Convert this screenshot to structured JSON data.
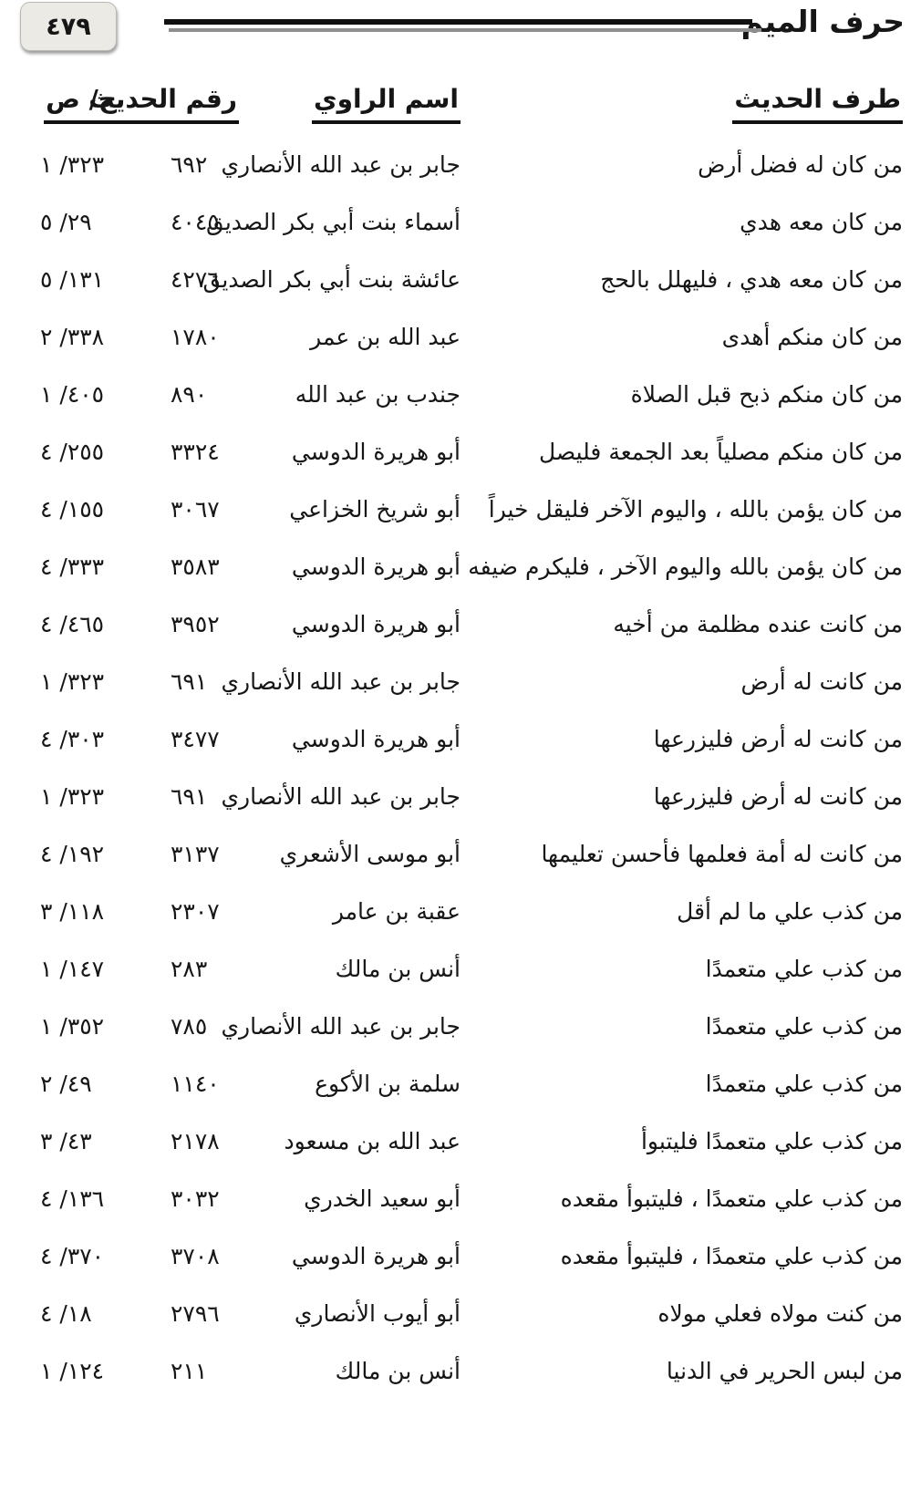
{
  "page": {
    "number": "٤٧٩",
    "section_title": "حرف الميم"
  },
  "table": {
    "headers": {
      "hadith": "طرف الحديث",
      "narrator": "اسم الراوي",
      "number": "رقم الحديث",
      "vol_page": "ج/ ص"
    },
    "ref_separator": "/ ",
    "rows": [
      {
        "hadith": "من كان له فضل أرض",
        "narrator": "جابر بن عبد الله الأنصاري",
        "number": "٦٩٢",
        "volume": "١",
        "page": "٣٢٣"
      },
      {
        "hadith": "من كان معه هدي",
        "narrator": "أسماء بنت أبي بكر الصديق",
        "number": "٤٠٤٥",
        "volume": "٥",
        "page": "٢٩"
      },
      {
        "hadith": "من كان معه هدي ، فليهلل بالحج",
        "narrator": "عائشة بنت أبي بكر الصديق",
        "number": "٤٢٧٦",
        "volume": "٥",
        "page": "١٣١"
      },
      {
        "hadith": "من كان منكم أهدى",
        "narrator": "عبد الله بن عمر",
        "number": "١٧٨٠",
        "volume": "٢",
        "page": "٣٣٨"
      },
      {
        "hadith": "من كان منكم ذبح قبل الصلاة",
        "narrator": "جندب بن عبد الله",
        "number": "٨٩٠",
        "volume": "١",
        "page": "٤٠٥"
      },
      {
        "hadith": "من كان منكم مصلياً بعد الجمعة فليصل",
        "narrator": "أبو هريرة الدوسي",
        "number": "٣٣٢٤",
        "volume": "٤",
        "page": "٢٥٥"
      },
      {
        "hadith": "من كان يؤمن بالله ، واليوم الآخر فليقل خيراً",
        "narrator": "أبو شريخ الخزاعي",
        "number": "٣٠٦٧",
        "volume": "٤",
        "page": "١٥٥"
      },
      {
        "hadith": "من كان يؤمن بالله واليوم الآخر ، فليكرم ضيفه",
        "narrator": "أبو هريرة الدوسي",
        "number": "٣٥٨٣",
        "volume": "٤",
        "page": "٣٣٣"
      },
      {
        "hadith": "من كانت عنده مظلمة من أخيه",
        "narrator": "أبو هريرة الدوسي",
        "number": "٣٩٥٢",
        "volume": "٤",
        "page": "٤٦٥"
      },
      {
        "hadith": "من كانت له أرض",
        "narrator": "جابر بن عبد الله الأنصاري",
        "number": "٦٩١",
        "volume": "١",
        "page": "٣٢٣"
      },
      {
        "hadith": "من كانت له أرض فليزرعها",
        "narrator": "أبو هريرة الدوسي",
        "number": "٣٤٧٧",
        "volume": "٤",
        "page": "٣٠٣"
      },
      {
        "hadith": "من كانت له أرض فليزرعها",
        "narrator": "جابر بن عبد الله الأنصاري",
        "number": "٦٩١",
        "volume": "١",
        "page": "٣٢٣"
      },
      {
        "hadith": "من كانت له أمة فعلمها فأحسن تعليمها",
        "narrator": "أبو موسى الأشعري",
        "number": "٣١٣٧",
        "volume": "٤",
        "page": "١٩٢"
      },
      {
        "hadith": "من كذب علي ما لم أقل",
        "narrator": "عقبة بن عامر",
        "number": "٢٣٠٧",
        "volume": "٣",
        "page": "١١٨"
      },
      {
        "hadith": "من كذب علي متعمدًا",
        "narrator": "أنس بن مالك",
        "number": "٢٨٣",
        "volume": "١",
        "page": "١٤٧"
      },
      {
        "hadith": "من كذب علي متعمدًا",
        "narrator": "جابر بن عبد الله الأنصاري",
        "number": "٧٨٥",
        "volume": "١",
        "page": "٣٥٢"
      },
      {
        "hadith": "من كذب علي متعمدًا",
        "narrator": "سلمة بن الأكوع",
        "number": "١١٤٠",
        "volume": "٢",
        "page": "٤٩"
      },
      {
        "hadith": "من كذب علي متعمدًا فليتبوأ",
        "narrator": "عبد الله بن مسعود",
        "number": "٢١٧٨",
        "volume": "٣",
        "page": "٤٣"
      },
      {
        "hadith": "من كذب علي متعمدًا ، فليتبوأ مقعده",
        "narrator": "أبو سعيد الخدري",
        "number": "٣٠٣٢",
        "volume": "٤",
        "page": "١٣٦"
      },
      {
        "hadith": "من كذب علي متعمدًا ، فليتبوأ مقعده",
        "narrator": "أبو هريرة الدوسي",
        "number": "٣٧٠٨",
        "volume": "٤",
        "page": "٣٧٠"
      },
      {
        "hadith": "من كنت مولاه فعلي مولاه",
        "narrator": "أبو أيوب الأنصاري",
        "number": "٢٧٩٦",
        "volume": "٤",
        "page": "١٨"
      },
      {
        "hadith": "من لبس الحرير في الدنيا",
        "narrator": "أنس بن مالك",
        "number": "٢١١",
        "volume": "١",
        "page": "١٢٤"
      }
    ]
  }
}
